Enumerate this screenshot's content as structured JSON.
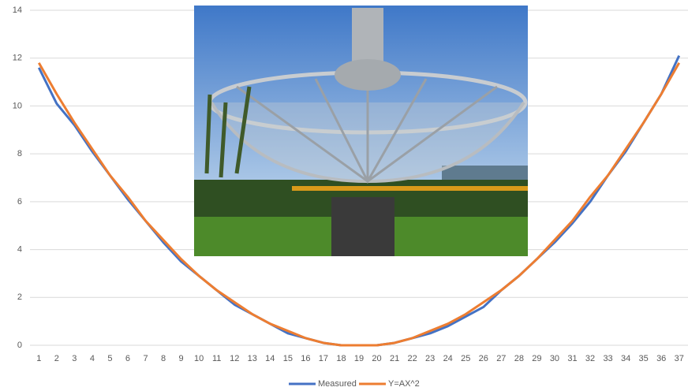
{
  "chart_data": {
    "type": "line",
    "categories": [
      1,
      2,
      3,
      4,
      5,
      6,
      7,
      8,
      9,
      10,
      11,
      12,
      13,
      14,
      15,
      16,
      17,
      18,
      19,
      20,
      21,
      22,
      23,
      24,
      25,
      26,
      27,
      28,
      29,
      30,
      31,
      32,
      33,
      34,
      35,
      36,
      37
    ],
    "series": [
      {
        "name": "Measured",
        "color": "#4472c4",
        "values": [
          11.6,
          10.1,
          9.2,
          8.1,
          7.1,
          6.1,
          5.2,
          4.3,
          3.5,
          2.9,
          2.3,
          1.7,
          1.3,
          0.9,
          0.5,
          0.3,
          0.1,
          0.0,
          0.0,
          0.0,
          0.1,
          0.3,
          0.5,
          0.8,
          1.2,
          1.6,
          2.3,
          2.9,
          3.6,
          4.3,
          5.1,
          6.0,
          7.1,
          8.1,
          9.3,
          10.5,
          12.1
        ]
      },
      {
        "name": "Y=AX^2",
        "color": "#ed7d31",
        "values": [
          11.8,
          10.5,
          9.3,
          8.2,
          7.1,
          6.2,
          5.2,
          4.4,
          3.6,
          2.9,
          2.3,
          1.8,
          1.3,
          0.9,
          0.6,
          0.3,
          0.1,
          0.0,
          0.0,
          0.0,
          0.1,
          0.3,
          0.6,
          0.9,
          1.3,
          1.8,
          2.3,
          2.9,
          3.6,
          4.4,
          5.2,
          6.2,
          7.1,
          8.2,
          9.3,
          10.5,
          11.8
        ]
      }
    ],
    "ylim": [
      0,
      14
    ],
    "yticks": [
      0,
      2,
      4,
      6,
      8,
      10,
      12,
      14
    ],
    "grid": true,
    "legend": "bottom"
  }
}
